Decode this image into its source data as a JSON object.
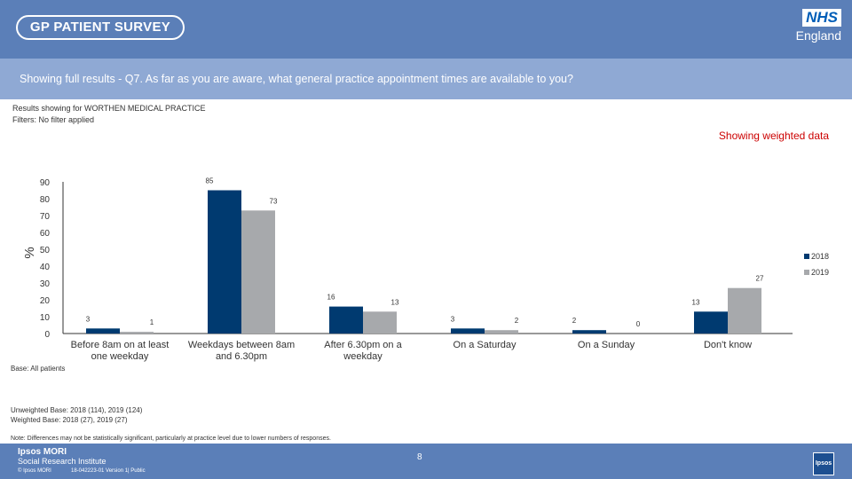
{
  "header": {
    "survey_logo": "GP PATIENT SURVEY",
    "nhs_logo": "NHS",
    "nhs_region": "England"
  },
  "question": "Showing full results - Q7.  As far as you are aware, what general practice appointment times are available to you?",
  "results_for": "Results showing for WORTHEN MEDICAL PRACTICE",
  "filters": "Filters: No filter applied",
  "weighted_label": "Showing weighted data",
  "base_note": "Base: All patients",
  "unweighted_base": "Unweighted Base: 2018 (114), 2019 (124)",
  "weighted_base": "Weighted Base: 2018 (27), 2019 (27)",
  "note": "Note: Differences may not be statistically significant, particularly at practice level due to lower numbers of responses.",
  "footer": {
    "brand": "Ipsos MORI",
    "brand_sub": "Social Research Institute",
    "copyright": "© Ipsos MORI",
    "job_ref": "18-042223-01 Version 1| Public",
    "page_number": "8",
    "badge": "Ipsos"
  },
  "colors": {
    "series_2018": "#003a70",
    "series_2019": "#a7a9ac",
    "header_bg": "#5b7fb8",
    "question_bg": "#8fa9d4",
    "weighted_label": "#cc0000"
  },
  "chart_data": {
    "type": "bar",
    "categories": [
      "Before 8am on at least one weekday",
      "Weekdays between 8am and 6.30pm",
      "After 6.30pm on a weekday",
      "On a Saturday",
      "On a Sunday",
      "Don't know"
    ],
    "series": [
      {
        "name": "2018",
        "values": [
          3,
          85,
          16,
          3,
          2,
          13
        ]
      },
      {
        "name": "2019",
        "values": [
          1,
          73,
          13,
          2,
          0,
          27
        ]
      }
    ],
    "ylabel": "%",
    "yticks": [
      0,
      10,
      20,
      30,
      40,
      50,
      60,
      70,
      80,
      90
    ],
    "ylim": [
      0,
      90
    ],
    "legend_position": "right",
    "grid": false
  }
}
